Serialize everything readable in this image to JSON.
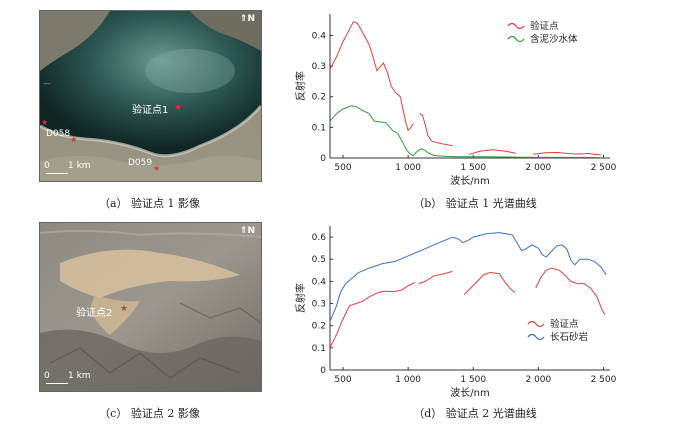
{
  "panel_a": {
    "caption": "（a） 验证点 1 影像",
    "labels": {
      "point": "验证点1",
      "d058": "D058",
      "d059": "D059",
      "scale": "1 km",
      "scale_zero": "0",
      "north": "N"
    }
  },
  "panel_c": {
    "caption": "（c） 验证点 2 影像",
    "labels": {
      "point": "验证点2",
      "scale": "1 km",
      "scale_zero": "0",
      "north": "N"
    }
  },
  "panel_b": {
    "caption": "（b） 验证点 1 光谱曲线"
  },
  "panel_d": {
    "caption": "（d） 验证点 2 光谱曲线"
  },
  "colors": {
    "red": "#e2403c",
    "green": "#2f9a3a",
    "blue": "#3a6fc8"
  },
  "chart_data": [
    {
      "type": "line",
      "id": "b",
      "xlabel": "波长/nm",
      "ylabel": "反射率",
      "xlim": [
        400,
        2550
      ],
      "ylim": [
        0,
        0.47
      ],
      "xticks": [
        500,
        1000,
        1500,
        2000,
        2500
      ],
      "xtick_labels": [
        "500",
        "1 000",
        "1 500",
        "2 000",
        "2 500"
      ],
      "yticks": [
        0,
        0.1,
        0.2,
        0.3,
        0.4
      ],
      "ytick_labels": [
        "0",
        "0.1",
        "0.2",
        "0.3",
        "0.4"
      ],
      "legend": "top-right",
      "series": [
        {
          "name": "验证点",
          "color": "red",
          "segments": [
            [
              [
                400,
                0.29
              ],
              [
                450,
                0.33
              ],
              [
                500,
                0.38
              ],
              [
                550,
                0.42
              ],
              [
                580,
                0.445
              ],
              [
                610,
                0.44
              ],
              [
                650,
                0.41
              ],
              [
                700,
                0.37
              ],
              [
                730,
                0.33
              ],
              [
                760,
                0.285
              ],
              [
                790,
                0.3
              ],
              [
                810,
                0.31
              ],
              [
                840,
                0.28
              ],
              [
                870,
                0.235
              ],
              [
                900,
                0.215
              ],
              [
                940,
                0.2
              ],
              [
                960,
                0.16
              ],
              [
                980,
                0.12
              ],
              [
                1000,
                0.09
              ],
              [
                1020,
                0.1
              ],
              [
                1040,
                0.11
              ]
            ],
            [
              [
                1090,
                0.145
              ],
              [
                1110,
                0.14
              ],
              [
                1130,
                0.11
              ],
              [
                1150,
                0.075
              ],
              [
                1180,
                0.055
              ],
              [
                1220,
                0.05
              ],
              [
                1280,
                0.045
              ],
              [
                1340,
                0.04
              ]
            ],
            [
              [
                1470,
                0.012
              ],
              [
                1550,
                0.022
              ],
              [
                1650,
                0.027
              ],
              [
                1750,
                0.022
              ],
              [
                1830,
                0.015
              ]
            ],
            [
              [
                1960,
                0.012
              ],
              [
                2050,
                0.017
              ],
              [
                2150,
                0.018
              ],
              [
                2250,
                0.014
              ],
              [
                2330,
                0.013
              ],
              [
                2380,
                0.015
              ],
              [
                2430,
                0.012
              ],
              [
                2480,
                0.01
              ]
            ]
          ]
        },
        {
          "name": "含泥沙水体",
          "color": "green",
          "segments": [
            [
              [
                400,
                0.12
              ],
              [
                450,
                0.145
              ],
              [
                500,
                0.16
              ],
              [
                560,
                0.17
              ],
              [
                600,
                0.168
              ],
              [
                650,
                0.155
              ],
              [
                700,
                0.145
              ],
              [
                740,
                0.12
              ],
              [
                780,
                0.118
              ],
              [
                830,
                0.115
              ],
              [
                880,
                0.09
              ],
              [
                920,
                0.08
              ],
              [
                960,
                0.05
              ],
              [
                990,
                0.025
              ],
              [
                1020,
                0.012
              ],
              [
                1040,
                0.008
              ],
              [
                1070,
                0.022
              ],
              [
                1100,
                0.03
              ],
              [
                1130,
                0.025
              ],
              [
                1160,
                0.015
              ],
              [
                1200,
                0.008
              ],
              [
                1300,
                0.005
              ],
              [
                1400,
                0.004
              ],
              [
                1600,
                0.004
              ],
              [
                1800,
                0.003
              ],
              [
                2000,
                0.002
              ],
              [
                2200,
                0.002
              ],
              [
                2400,
                0.002
              ],
              [
                2500,
                0.001
              ]
            ]
          ]
        }
      ]
    },
    {
      "type": "line",
      "id": "d",
      "xlabel": "波长/nm",
      "ylabel": "反射率",
      "xlim": [
        400,
        2550
      ],
      "ylim": [
        0,
        0.65
      ],
      "xticks": [
        500,
        1000,
        1500,
        2000,
        2500
      ],
      "xtick_labels": [
        "500",
        "1 000",
        "1 500",
        "2 000",
        "2 500"
      ],
      "yticks": [
        0,
        0.1,
        0.2,
        0.3,
        0.4,
        0.5,
        0.6
      ],
      "ytick_labels": [
        "0",
        "0.1",
        "0.2",
        "0.3",
        "0.4",
        "0.5",
        "0.6"
      ],
      "legend": "bottom-right",
      "series": [
        {
          "name": "验证点",
          "color": "red",
          "segments": [
            [
              [
                400,
                0.1
              ],
              [
                450,
                0.16
              ],
              [
                500,
                0.23
              ],
              [
                550,
                0.29
              ],
              [
                600,
                0.3
              ],
              [
                650,
                0.31
              ],
              [
                700,
                0.33
              ],
              [
                750,
                0.345
              ],
              [
                800,
                0.355
              ],
              [
                900,
                0.355
              ],
              [
                950,
                0.36
              ],
              [
                1000,
                0.38
              ],
              [
                1050,
                0.395
              ]
            ],
            [
              [
                1080,
                0.39
              ],
              [
                1130,
                0.4
              ],
              [
                1200,
                0.425
              ],
              [
                1280,
                0.435
              ],
              [
                1340,
                0.445
              ]
            ],
            [
              [
                1430,
                0.34
              ],
              [
                1480,
                0.37
              ],
              [
                1530,
                0.4
              ],
              [
                1580,
                0.43
              ],
              [
                1630,
                0.44
              ],
              [
                1700,
                0.435
              ],
              [
                1740,
                0.4
              ],
              [
                1780,
                0.37
              ],
              [
                1820,
                0.35
              ]
            ],
            [
              [
                1980,
                0.37
              ],
              [
                2020,
                0.42
              ],
              [
                2060,
                0.45
              ],
              [
                2100,
                0.46
              ],
              [
                2160,
                0.45
              ],
              [
                2200,
                0.43
              ],
              [
                2250,
                0.4
              ],
              [
                2300,
                0.39
              ],
              [
                2350,
                0.39
              ],
              [
                2400,
                0.37
              ],
              [
                2450,
                0.33
              ],
              [
                2490,
                0.27
              ],
              [
                2510,
                0.25
              ]
            ]
          ]
        },
        {
          "name": "长石砂岩",
          "color": "blue",
          "segments": [
            [
              [
                400,
                0.22
              ],
              [
                450,
                0.29
              ],
              [
                480,
                0.35
              ],
              [
                520,
                0.39
              ],
              [
                560,
                0.41
              ],
              [
                620,
                0.44
              ],
              [
                700,
                0.46
              ],
              [
                800,
                0.48
              ],
              [
                900,
                0.49
              ],
              [
                1000,
                0.515
              ],
              [
                1100,
                0.54
              ],
              [
                1200,
                0.565
              ],
              [
                1280,
                0.585
              ],
              [
                1340,
                0.6
              ],
              [
                1390,
                0.59
              ],
              [
                1420,
                0.575
              ],
              [
                1460,
                0.585
              ],
              [
                1500,
                0.6
              ],
              [
                1600,
                0.615
              ],
              [
                1700,
                0.62
              ],
              [
                1800,
                0.61
              ],
              [
                1850,
                0.56
              ],
              [
                1870,
                0.54
              ],
              [
                1900,
                0.545
              ],
              [
                1950,
                0.565
              ],
              [
                2000,
                0.55
              ],
              [
                2030,
                0.52
              ],
              [
                2060,
                0.51
              ],
              [
                2100,
                0.535
              ],
              [
                2140,
                0.56
              ],
              [
                2180,
                0.565
              ],
              [
                2220,
                0.545
              ],
              [
                2250,
                0.495
              ],
              [
                2280,
                0.475
              ],
              [
                2320,
                0.5
              ],
              [
                2380,
                0.5
              ],
              [
                2430,
                0.49
              ],
              [
                2480,
                0.465
              ],
              [
                2520,
                0.43
              ]
            ]
          ]
        }
      ]
    }
  ]
}
